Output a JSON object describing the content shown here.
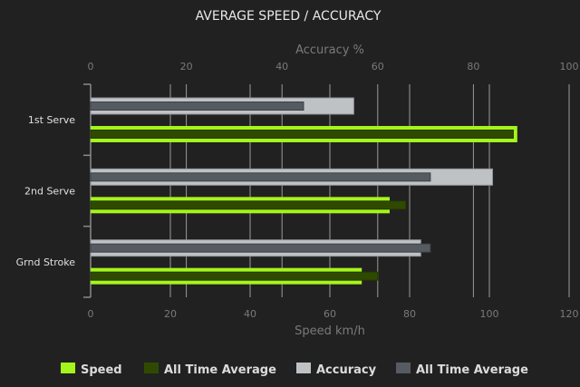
{
  "chart_data": {
    "type": "bar",
    "orientation": "horizontal",
    "title": "AVERAGE SPEED / ACCURACY",
    "categories": [
      "1st Serve",
      "2nd Serve",
      "Grnd Stroke"
    ],
    "top_axis": {
      "label": "Accuracy %",
      "range": [
        0,
        100
      ],
      "ticks": [
        "0",
        "20",
        "40",
        "60",
        "80",
        "100"
      ]
    },
    "bottom_axis": {
      "label": "Speed km/h",
      "range": [
        0,
        120
      ],
      "ticks": [
        "0",
        "20",
        "40",
        "60",
        "80",
        "100",
        "120"
      ]
    },
    "grid": true,
    "legend_position": "bottom",
    "series": [
      {
        "name": "Speed",
        "axis": "speed",
        "values": [
          107,
          75,
          68
        ],
        "color": "#a5f51d"
      },
      {
        "name": "All Time Average",
        "axis": "speed",
        "values": [
          106,
          79,
          72
        ],
        "color": "#2f4a00"
      },
      {
        "name": "Accuracy",
        "axis": "accuracy",
        "values": [
          55,
          84,
          69
        ],
        "color": "#bec2c5"
      },
      {
        "name": "All Time Average",
        "axis": "accuracy",
        "values": [
          44.5,
          71,
          71
        ],
        "color": "#565b62"
      }
    ]
  }
}
